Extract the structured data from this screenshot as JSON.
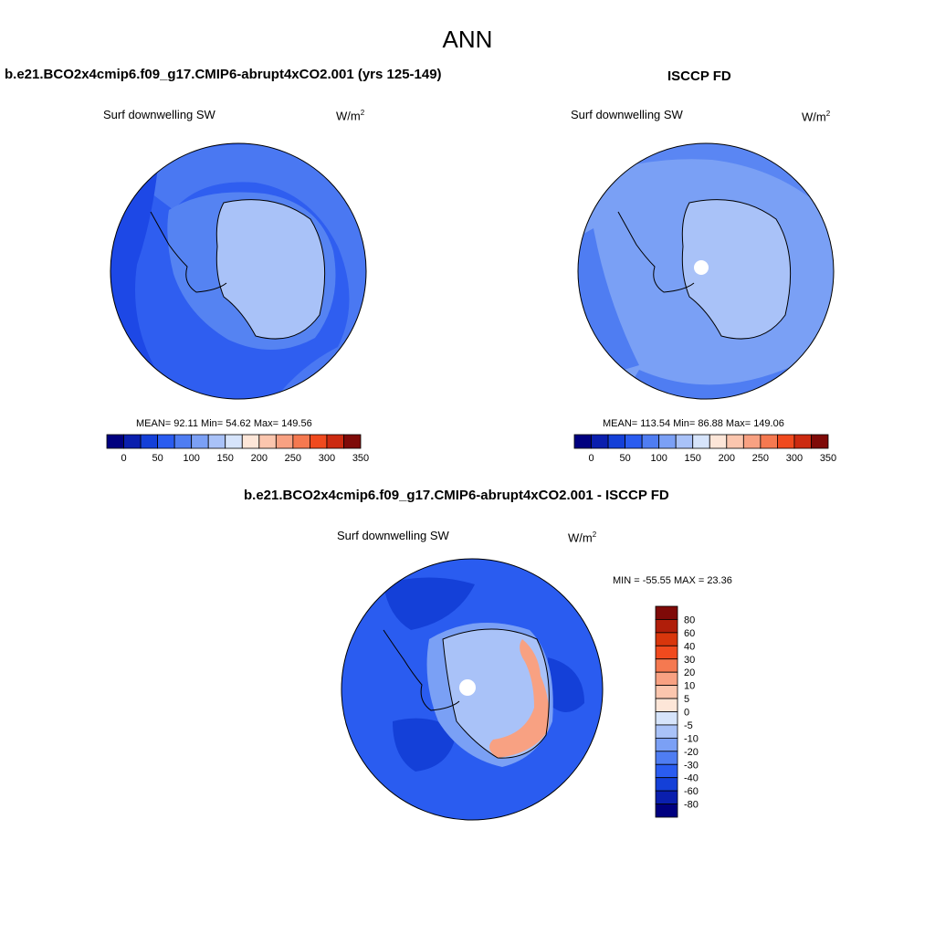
{
  "figure": {
    "title": "ANN"
  },
  "panels": [
    {
      "case_title": "b.e21.BCO2x4cmip6.f09_g17.CMIP6-abrupt4xCO2.001 (yrs 125-149)",
      "variable": "Surf downwelling SW",
      "units_base": "W/m",
      "units_exp": "2",
      "stats": "MEAN=  92.11  Min=  54.62  Max= 149.56",
      "colorbar_ticks": [
        "0",
        "50",
        "100",
        "150",
        "200",
        "250",
        "300",
        "350"
      ]
    },
    {
      "case_title": "ISCCP FD",
      "variable": "Surf downwelling SW",
      "units_base": "W/m",
      "units_exp": "2",
      "stats": "MEAN= 113.54  Min=  86.88  Max= 149.06",
      "colorbar_ticks": [
        "0",
        "50",
        "100",
        "150",
        "200",
        "250",
        "300",
        "350"
      ]
    },
    {
      "case_title": "b.e21.BCO2x4cmip6.f09_g17.CMIP6-abrupt4xCO2.001 - ISCCP FD",
      "variable": "Surf downwelling SW",
      "units_base": "W/m",
      "units_exp": "2",
      "stats": "MIN = -55.55 MAX =  23.36",
      "colorbar_ticks": [
        "80",
        "60",
        "40",
        "30",
        "20",
        "10",
        "5",
        "0",
        "-5",
        "-10",
        "-20",
        "-30",
        "-40",
        "-60",
        "-80"
      ]
    }
  ],
  "colors": {
    "abs_scale": [
      "#00007f",
      "#0a1fae",
      "#1440d8",
      "#2a5cf0",
      "#4f7df2",
      "#7ba0f5",
      "#a9c2f8",
      "#d6e4fb",
      "#fde6d8",
      "#fbc6ae",
      "#f8a182",
      "#f57950",
      "#f04a1e",
      "#cc2a10",
      "#7f0a08"
    ],
    "diff_scale": [
      "#7f0a08",
      "#b01e0a",
      "#d8360c",
      "#f04a1e",
      "#f57950",
      "#f8a182",
      "#fbc6ae",
      "#fde6d8",
      "#d6e4fb",
      "#a9c2f8",
      "#7ba0f5",
      "#4f7df2",
      "#2a5cf0",
      "#1440d8",
      "#0a1fae",
      "#00007f"
    ]
  }
}
